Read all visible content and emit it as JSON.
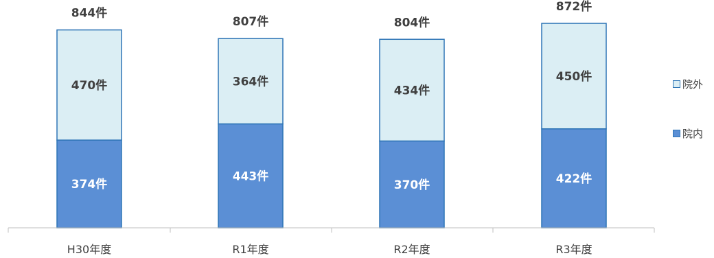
{
  "chart_data": {
    "type": "bar",
    "stacked": true,
    "categories": [
      "H30年度",
      "R1年度",
      "R2年度",
      "R3年度"
    ],
    "series": [
      {
        "name": "院内",
        "values": [
          374,
          443,
          370,
          422
        ],
        "labels": [
          "374件",
          "443件",
          "370件",
          "422件"
        ],
        "color": "#5b8fd5"
      },
      {
        "name": "院外",
        "values": [
          470,
          364,
          434,
          450
        ],
        "labels": [
          "470件",
          "364件",
          "434件",
          "450件"
        ],
        "color": "#dbeef4"
      }
    ],
    "totals": [
      844,
      807,
      804,
      872
    ],
    "total_labels": [
      "844件",
      "807件",
      "804件",
      "872件"
    ],
    "border_color": "#2e75b6",
    "legend_position": "right",
    "grid": false
  },
  "legend": {
    "outer_label": "院外",
    "inner_label": "院内"
  }
}
